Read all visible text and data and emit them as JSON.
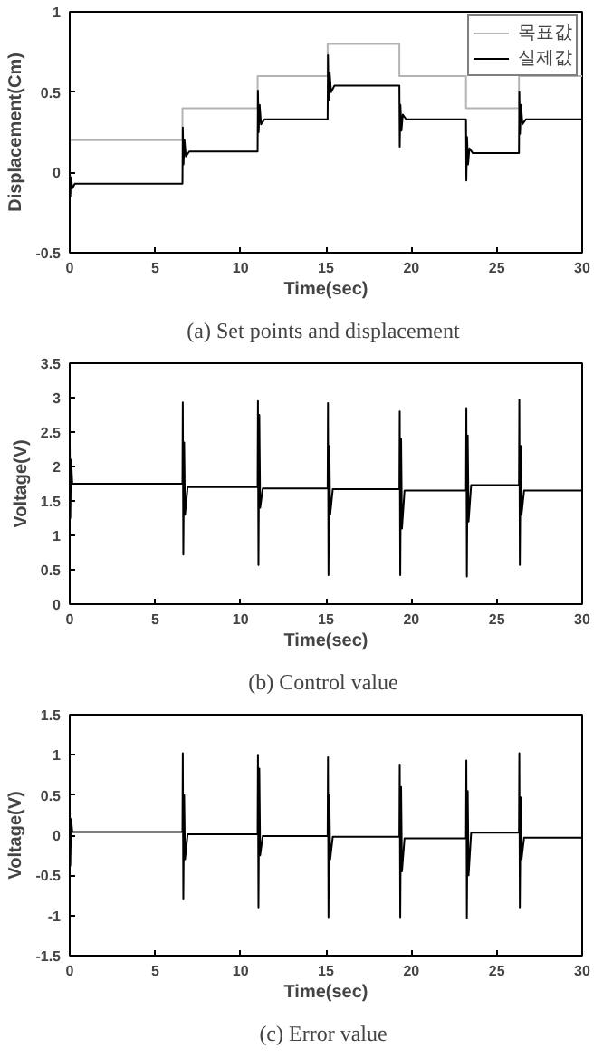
{
  "chart_data": [
    {
      "type": "line",
      "xlabel": "Time(sec)",
      "ylabel": "Displacement(Cm)",
      "annotations": [
        "(a)  Set points and displacement"
      ],
      "xlim": [
        0,
        30
      ],
      "ylim": [
        -0.5,
        1
      ],
      "xticks": [
        0,
        5,
        10,
        15,
        20,
        25,
        30
      ],
      "yticks": [
        -0.5,
        0,
        0.5,
        1
      ],
      "grid": false,
      "legend": "top right",
      "series": [
        {
          "name": "목표값",
          "color": "#b4b4b4",
          "x": [
            0,
            6.6,
            6.6,
            11,
            11,
            15.1,
            15.1,
            19.3,
            19.3,
            23.2,
            23.2,
            26.3,
            26.3,
            30
          ],
          "values": [
            0.2,
            0.2,
            0.4,
            0.4,
            0.6,
            0.6,
            0.8,
            0.8,
            0.6,
            0.6,
            0.4,
            0.4,
            0.6,
            0.6
          ]
        },
        {
          "name": "실제값",
          "color": "#000000",
          "x": [
            0,
            0.03,
            0.08,
            0.15,
            0.3,
            6.6,
            6.62,
            6.66,
            6.72,
            6.8,
            7.0,
            11.0,
            11.02,
            11.06,
            11.12,
            11.2,
            11.4,
            15.1,
            15.12,
            15.16,
            15.22,
            15.3,
            15.5,
            19.3,
            19.32,
            19.36,
            19.42,
            19.5,
            19.7,
            23.2,
            23.22,
            23.26,
            23.32,
            23.4,
            23.6,
            26.3,
            26.32,
            26.36,
            26.42,
            26.5,
            26.7,
            30
          ],
          "values": [
            0,
            -0.15,
            -0.03,
            -0.1,
            -0.07,
            -0.07,
            0.28,
            0.05,
            0.2,
            0.1,
            0.13,
            0.13,
            0.51,
            0.25,
            0.42,
            0.3,
            0.33,
            0.33,
            0.73,
            0.45,
            0.62,
            0.5,
            0.54,
            0.54,
            0.16,
            0.42,
            0.26,
            0.36,
            0.33,
            0.33,
            -0.05,
            0.22,
            0.05,
            0.15,
            0.12,
            0.12,
            0.5,
            0.24,
            0.42,
            0.3,
            0.33,
            0.33
          ]
        }
      ]
    },
    {
      "type": "line",
      "xlabel": "Time(sec)",
      "ylabel": "Voltage(V)",
      "annotations": [
        "(b)  Control value"
      ],
      "xlim": [
        0,
        30
      ],
      "ylim": [
        0,
        3.5
      ],
      "xticks": [
        0,
        5,
        10,
        15,
        20,
        25,
        30
      ],
      "yticks": [
        0,
        0.5,
        1,
        1.5,
        2,
        2.5,
        3,
        3.5
      ],
      "grid": false,
      "series": [
        {
          "color": "#000000",
          "x": [
            0,
            0.03,
            0.08,
            0.15,
            6.6,
            6.62,
            6.65,
            6.7,
            6.75,
            6.9,
            11.0,
            11.02,
            11.05,
            11.1,
            11.15,
            11.3,
            15.1,
            15.12,
            15.15,
            15.2,
            15.25,
            15.4,
            19.3,
            19.32,
            19.35,
            19.4,
            19.45,
            19.6,
            23.2,
            23.22,
            23.25,
            23.3,
            23.35,
            23.5,
            26.3,
            26.32,
            26.35,
            26.4,
            26.45,
            26.6,
            30
          ],
          "values": [
            2.35,
            1.25,
            2.1,
            1.75,
            1.75,
            2.93,
            0.72,
            2.35,
            1.3,
            1.7,
            1.7,
            2.95,
            0.57,
            2.75,
            1.4,
            1.68,
            1.68,
            2.92,
            0.42,
            2.3,
            1.3,
            1.67,
            1.67,
            2.8,
            0.42,
            2.4,
            1.1,
            1.65,
            1.65,
            2.85,
            0.4,
            2.45,
            1.2,
            1.73,
            1.73,
            2.97,
            0.57,
            2.3,
            1.3,
            1.65,
            1.65
          ]
        }
      ]
    },
    {
      "type": "line",
      "xlabel": "Time(sec)",
      "ylabel": "Voltage(V)",
      "annotations": [
        "(c)  Error value"
      ],
      "xlim": [
        0,
        30
      ],
      "ylim": [
        -1.5,
        1.5
      ],
      "xticks": [
        0,
        5,
        10,
        15,
        20,
        25,
        30
      ],
      "yticks": [
        -1.5,
        -1,
        -0.5,
        0,
        0.5,
        1,
        1.5
      ],
      "grid": false,
      "series": [
        {
          "color": "#000000",
          "x": [
            0,
            0.03,
            0.08,
            0.15,
            6.6,
            6.62,
            6.65,
            6.7,
            6.75,
            6.9,
            11.0,
            11.02,
            11.05,
            11.1,
            11.15,
            11.3,
            15.1,
            15.12,
            15.15,
            15.2,
            15.25,
            15.4,
            19.3,
            19.32,
            19.35,
            19.4,
            19.45,
            19.6,
            23.2,
            23.22,
            23.25,
            23.3,
            23.35,
            23.5,
            26.3,
            26.32,
            26.35,
            26.4,
            26.45,
            26.6,
            30
          ],
          "values": [
            0.33,
            -0.38,
            0.2,
            0.04,
            0.04,
            1.02,
            -0.8,
            0.5,
            -0.3,
            0.01,
            0.01,
            1.0,
            -0.9,
            0.83,
            -0.25,
            -0.01,
            -0.01,
            0.97,
            -1.02,
            0.5,
            -0.3,
            -0.02,
            -0.02,
            0.88,
            -1.02,
            0.6,
            -0.45,
            -0.04,
            -0.04,
            0.93,
            -1.03,
            0.55,
            -0.5,
            0.03,
            0.03,
            1.02,
            -0.9,
            0.47,
            -0.3,
            -0.03,
            -0.03
          ]
        }
      ]
    }
  ]
}
